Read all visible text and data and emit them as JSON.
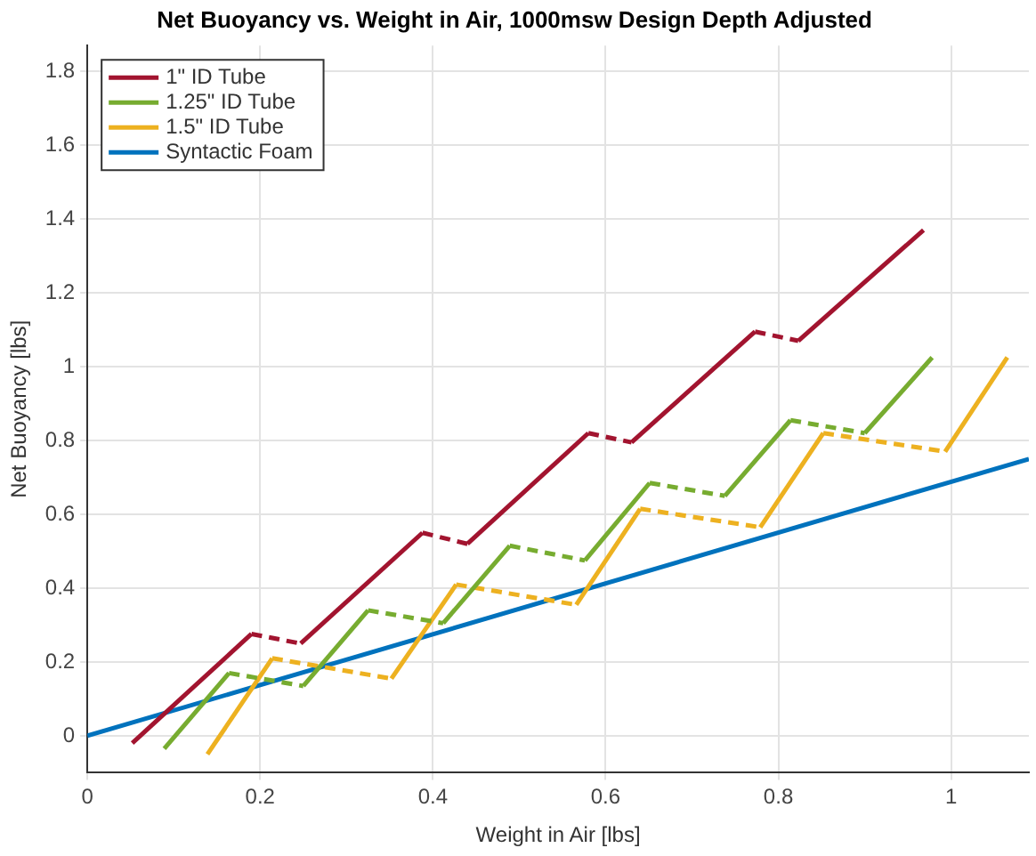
{
  "chart_data": {
    "type": "line",
    "title": "Net Buoyancy vs. Weight in Air, 1000msw Design Depth Adjusted",
    "xlabel": "Weight in Air [lbs]",
    "ylabel": "Net Buoyancy [lbs]",
    "xlim": [
      0,
      1.09
    ],
    "xticks": [
      0,
      0.2,
      0.4,
      0.6,
      0.8,
      1
    ],
    "ylim": [
      -0.1,
      1.87
    ],
    "yticks": [
      0,
      0.2,
      0.4,
      0.6,
      0.8,
      1,
      1.2,
      1.4,
      1.6,
      1.8
    ],
    "grid": true,
    "legend": "top left",
    "marker": "none",
    "series": [
      {
        "name": "1\" ID Tube",
        "color": "#a2142f",
        "line_style": [
          "solid",
          "dashed",
          "solid",
          "dashed",
          "solid",
          "dashed",
          "solid",
          "dashed",
          "solid"
        ],
        "x": [
          0.052,
          0.19,
          0.247,
          0.388,
          0.44,
          0.58,
          0.63,
          0.773,
          0.823,
          0.968
        ],
        "values": [
          -0.02,
          0.276,
          0.25,
          0.55,
          0.52,
          0.82,
          0.795,
          1.095,
          1.07,
          1.37
        ]
      },
      {
        "name": "1.25\" ID Tube",
        "color": "#77ac30",
        "line_style": [
          "solid",
          "dashed",
          "solid",
          "dashed",
          "solid",
          "dashed",
          "solid",
          "dashed",
          "solid",
          "dashed",
          "solid"
        ],
        "x": [
          0.089,
          0.164,
          0.25,
          0.325,
          0.412,
          0.489,
          0.576,
          0.651,
          0.738,
          0.814,
          0.9,
          0.978
        ],
        "values": [
          -0.035,
          0.17,
          0.135,
          0.34,
          0.305,
          0.515,
          0.475,
          0.685,
          0.65,
          0.855,
          0.82,
          1.025
        ]
      },
      {
        "name": "1.5\" ID Tube",
        "color": "#edb120",
        "line_style": [
          "solid",
          "dashed",
          "solid",
          "dashed",
          "solid",
          "dashed",
          "solid",
          "dashed",
          "solid"
        ],
        "x": [
          0.139,
          0.214,
          0.352,
          0.427,
          0.566,
          0.64,
          0.779,
          0.852,
          0.993,
          1.065
        ],
        "values": [
          -0.05,
          0.21,
          0.155,
          0.41,
          0.355,
          0.615,
          0.565,
          0.82,
          0.77,
          1.025
        ]
      },
      {
        "name": "Syntactic Foam",
        "color": "#0072bd",
        "line_style": "solid",
        "x": [
          0,
          1.09
        ],
        "values": [
          0,
          0.75
        ]
      }
    ]
  }
}
